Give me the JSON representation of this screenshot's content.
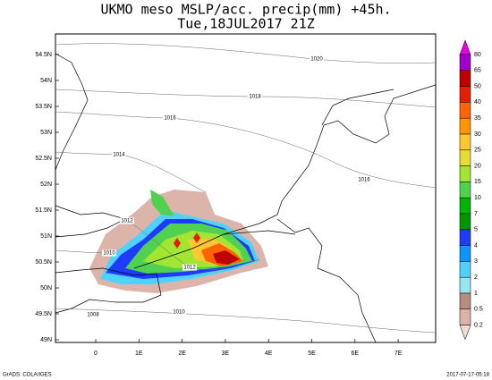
{
  "title": {
    "line1": "UKMO meso MSLP/acc. precip(mm) +45h.",
    "line2": "Tue,18JUL2017 21Z"
  },
  "lat_labels": [
    "54.5N",
    "54N",
    "53.5N",
    "53N",
    "52.5N",
    "52N",
    "51.5N",
    "51N",
    "50.5N",
    "50N",
    "49.5N",
    "49N"
  ],
  "lon_labels": [
    "0",
    "1E",
    "2E",
    "3E",
    "4E",
    "5E",
    "6E",
    "7E"
  ],
  "contour_labels": [
    "1020",
    "1018",
    "1016",
    "1014",
    "1016",
    "1012",
    "1010",
    "1012",
    "1008",
    "1010"
  ],
  "colorbar": {
    "labels": [
      "80",
      "65",
      "50",
      "40",
      "35",
      "30",
      "25",
      "20",
      "15",
      "10",
      "7",
      "5",
      "4",
      "3",
      "2",
      "1",
      "0.5",
      "0.2"
    ],
    "colors": [
      "#e600e6",
      "#a000c8",
      "#c00000",
      "#e61e00",
      "#ff6400",
      "#ff9600",
      "#ffc832",
      "#e6dc32",
      "#a0e632",
      "#50d250",
      "#00b400",
      "#009600",
      "#1e3cff",
      "#0a96ff",
      "#50d2ff",
      "#96e6f0",
      "#b48c82",
      "#dcb4aa",
      "#f0dcd2"
    ]
  },
  "footer": {
    "left": "GrADS: COLA/IGES",
    "right": "2017-07-17-05:18"
  }
}
